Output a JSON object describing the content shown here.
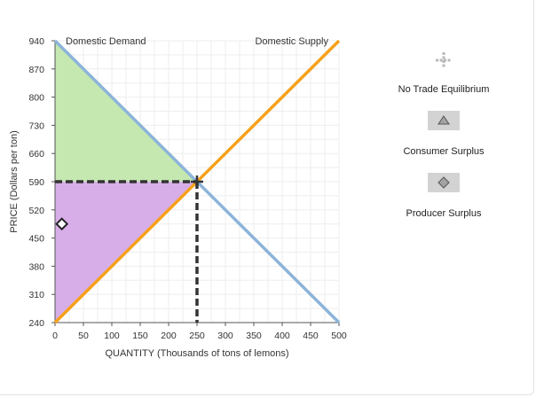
{
  "chart_data": {
    "type": "line",
    "xlabel": "QUANTITY (Thousands of tons of lemons)",
    "ylabel": "PRICE (Dollars per ton)",
    "xlim": [
      0,
      500
    ],
    "ylim": [
      240,
      940
    ],
    "x_ticks": [
      "0",
      "50",
      "100",
      "150",
      "200",
      "250",
      "300",
      "350",
      "400",
      "450",
      "500"
    ],
    "y_ticks": [
      "940",
      "870",
      "800",
      "730",
      "660",
      "590",
      "520",
      "450",
      "380",
      "310",
      "240"
    ],
    "grid": true,
    "series": [
      {
        "name": "Domestic Demand",
        "color": "#8cb4d9",
        "points": [
          [
            0,
            940
          ],
          [
            500,
            240
          ]
        ]
      },
      {
        "name": "Domestic Supply",
        "color": "#f6a11b",
        "points": [
          [
            0,
            240
          ],
          [
            500,
            940
          ]
        ]
      }
    ],
    "equilibrium": {
      "quantity": 250,
      "price": 590
    },
    "consumer_surplus_region": {
      "color": "#c4e8b0",
      "points": [
        [
          0,
          940
        ],
        [
          250,
          590
        ],
        [
          0,
          590
        ]
      ]
    },
    "producer_surplus_region": {
      "color": "#d7aee8",
      "points": [
        [
          0,
          590
        ],
        [
          250,
          590
        ],
        [
          0,
          240
        ]
      ]
    },
    "marker": {
      "shape": "diamond",
      "x": 12,
      "y": 485
    }
  },
  "legend": {
    "items": [
      {
        "label": "No Trade Equilibrium",
        "icon": "plus-cross-icon",
        "color": "#b8b8b8"
      },
      {
        "label": "Consumer Surplus",
        "icon": "triangle-icon",
        "color": "#d3d3d3"
      },
      {
        "label": "Producer Surplus",
        "icon": "diamond-icon",
        "color": "#d3d3d3"
      }
    ]
  }
}
